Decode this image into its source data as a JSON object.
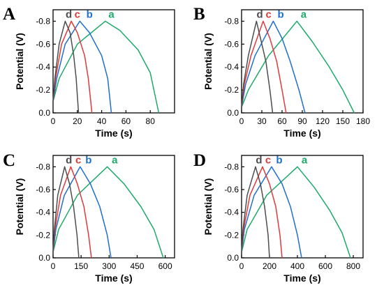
{
  "colors": {
    "a": "#1daa6a",
    "b": "#1f6fcf",
    "c": "#e2393b",
    "d": "#4d4d4d",
    "axis": "#000000"
  },
  "chart_data": [
    {
      "type": "line",
      "panel": "A",
      "xlabel": "Time (s)",
      "ylabel": "Potential (V)",
      "xlim": [
        0,
        100
      ],
      "ylim": [
        0.0,
        -0.9
      ],
      "xticks": [
        "0",
        "20",
        "40",
        "60",
        "80"
      ],
      "xtick_values": [
        0,
        20,
        40,
        60,
        80
      ],
      "yticks": [
        "-0.8",
        "-0.6",
        "-0.4",
        "-0.2",
        "0.0"
      ],
      "ytick_values": [
        -0.8,
        -0.6,
        -0.4,
        -0.2,
        0.0
      ],
      "series": [
        {
          "name": "a",
          "x": [
            0,
            5,
            20,
            43,
            55,
            70,
            80,
            87
          ],
          "y": [
            -0.1,
            -0.3,
            -0.6,
            -0.8,
            -0.72,
            -0.55,
            -0.35,
            0.0
          ]
        },
        {
          "name": "b",
          "x": [
            0,
            3,
            10,
            22,
            30,
            40,
            45,
            48
          ],
          "y": [
            -0.1,
            -0.3,
            -0.6,
            -0.8,
            -0.7,
            -0.5,
            -0.3,
            0.0
          ]
        },
        {
          "name": "c",
          "x": [
            0,
            2,
            7,
            15,
            20,
            26,
            29,
            32
          ],
          "y": [
            -0.1,
            -0.3,
            -0.6,
            -0.8,
            -0.7,
            -0.5,
            -0.3,
            0.0
          ]
        },
        {
          "name": "d",
          "x": [
            0,
            1.5,
            5,
            10,
            14,
            17,
            19,
            21
          ],
          "y": [
            -0.1,
            -0.3,
            -0.6,
            -0.8,
            -0.7,
            -0.5,
            -0.3,
            0.0
          ]
        }
      ],
      "labels": [
        {
          "text": "d",
          "series": "d",
          "x": 13,
          "y": -0.83
        },
        {
          "text": "c",
          "series": "c",
          "x": 20,
          "y": -0.83
        },
        {
          "text": "b",
          "series": "b",
          "x": 30,
          "y": -0.83
        },
        {
          "text": "a",
          "series": "a",
          "x": 48,
          "y": -0.83
        }
      ]
    },
    {
      "type": "line",
      "panel": "B",
      "xlabel": "Time (s)",
      "ylabel": "Potential (V)",
      "xlim": [
        0,
        180
      ],
      "ylim": [
        0.0,
        -0.9
      ],
      "xticks": [
        "0",
        "30",
        "60",
        "90",
        "120",
        "150",
        "180"
      ],
      "xtick_values": [
        0,
        30,
        60,
        90,
        120,
        150,
        180
      ],
      "yticks": [
        "-0.8",
        "-0.6",
        "-0.4",
        "-0.2",
        "0.0"
      ],
      "ytick_values": [
        -0.8,
        -0.6,
        -0.4,
        -0.2,
        0.0
      ],
      "series": [
        {
          "name": "a",
          "x": [
            0,
            10,
            40,
            82,
            105,
            130,
            150,
            167
          ],
          "y": [
            -0.05,
            -0.2,
            -0.5,
            -0.8,
            -0.62,
            -0.4,
            -0.2,
            0.0
          ]
        },
        {
          "name": "b",
          "x": [
            0,
            6,
            20,
            47,
            60,
            72,
            85,
            94
          ],
          "y": [
            -0.05,
            -0.25,
            -0.5,
            -0.8,
            -0.65,
            -0.45,
            -0.2,
            0.0
          ]
        },
        {
          "name": "c",
          "x": [
            0,
            4,
            14,
            32,
            42,
            52,
            60,
            66
          ],
          "y": [
            -0.05,
            -0.25,
            -0.5,
            -0.8,
            -0.65,
            -0.45,
            -0.2,
            0.0
          ]
        },
        {
          "name": "d",
          "x": [
            0,
            3,
            10,
            22,
            28,
            36,
            42,
            46
          ],
          "y": [
            -0.05,
            -0.25,
            -0.5,
            -0.8,
            -0.65,
            -0.45,
            -0.2,
            0.0
          ]
        }
      ],
      "labels": [
        {
          "text": "d",
          "series": "d",
          "x": 27,
          "y": -0.83
        },
        {
          "text": "c",
          "series": "c",
          "x": 40,
          "y": -0.83
        },
        {
          "text": "b",
          "series": "b",
          "x": 58,
          "y": -0.83
        },
        {
          "text": "a",
          "series": "a",
          "x": 92,
          "y": -0.83
        }
      ]
    },
    {
      "type": "line",
      "panel": "C",
      "xlabel": "Time (s)",
      "ylabel": "Potential (V)",
      "xlim": [
        0,
        650
      ],
      "ylim": [
        0.0,
        -0.9
      ],
      "xticks": [
        "0",
        "150",
        "300",
        "450",
        "600"
      ],
      "xtick_values": [
        0,
        150,
        300,
        450,
        600
      ],
      "yticks": [
        "-0.8",
        "-0.6",
        "-0.4",
        "-0.2",
        "0.0"
      ],
      "ytick_values": [
        -0.8,
        -0.6,
        -0.4,
        -0.2,
        0.0
      ],
      "series": [
        {
          "name": "a",
          "x": [
            0,
            30,
            130,
            290,
            380,
            470,
            540,
            590
          ],
          "y": [
            -0.05,
            -0.25,
            -0.55,
            -0.8,
            -0.65,
            -0.45,
            -0.25,
            0.0
          ]
        },
        {
          "name": "b",
          "x": [
            0,
            15,
            60,
            145,
            200,
            250,
            290,
            310
          ],
          "y": [
            -0.05,
            -0.25,
            -0.55,
            -0.8,
            -0.65,
            -0.45,
            -0.2,
            0.0
          ]
        },
        {
          "name": "c",
          "x": [
            0,
            10,
            40,
            95,
            130,
            165,
            190,
            205
          ],
          "y": [
            -0.05,
            -0.25,
            -0.55,
            -0.8,
            -0.65,
            -0.45,
            -0.2,
            0.0
          ]
        },
        {
          "name": "d",
          "x": [
            0,
            7,
            25,
            62,
            88,
            110,
            128,
            138
          ],
          "y": [
            -0.05,
            -0.25,
            -0.55,
            -0.8,
            -0.65,
            -0.45,
            -0.2,
            0.0
          ]
        }
      ],
      "labels": [
        {
          "text": "d",
          "series": "d",
          "x": 85,
          "y": -0.83
        },
        {
          "text": "c",
          "series": "c",
          "x": 135,
          "y": -0.83
        },
        {
          "text": "b",
          "series": "b",
          "x": 190,
          "y": -0.83
        },
        {
          "text": "a",
          "series": "a",
          "x": 330,
          "y": -0.83
        }
      ]
    },
    {
      "type": "line",
      "panel": "D",
      "xlabel": "Time (s)",
      "ylabel": "Potential (V)",
      "xlim": [
        0,
        870
      ],
      "ylim": [
        0.0,
        -0.9
      ],
      "xticks": [
        "0",
        "200",
        "400",
        "600",
        "800"
      ],
      "xtick_values": [
        0,
        200,
        400,
        600,
        800
      ],
      "yticks": [
        "-0.8",
        "-0.6",
        "-0.4",
        "-0.2",
        "0.0"
      ],
      "ytick_values": [
        -0.8,
        -0.6,
        -0.4,
        -0.2,
        0.0
      ],
      "series": [
        {
          "name": "a",
          "x": [
            0,
            40,
            180,
            400,
            520,
            630,
            720,
            780
          ],
          "y": [
            -0.05,
            -0.25,
            -0.55,
            -0.8,
            -0.62,
            -0.42,
            -0.22,
            0.0
          ]
        },
        {
          "name": "b",
          "x": [
            0,
            20,
            90,
            215,
            290,
            350,
            400,
            430
          ],
          "y": [
            -0.05,
            -0.25,
            -0.55,
            -0.8,
            -0.65,
            -0.45,
            -0.2,
            0.0
          ]
        },
        {
          "name": "c",
          "x": [
            0,
            14,
            60,
            150,
            200,
            245,
            275,
            290
          ],
          "y": [
            -0.05,
            -0.25,
            -0.55,
            -0.8,
            -0.65,
            -0.45,
            -0.2,
            0.0
          ]
        },
        {
          "name": "d",
          "x": [
            0,
            10,
            40,
            100,
            135,
            165,
            190,
            200
          ],
          "y": [
            -0.05,
            -0.25,
            -0.55,
            -0.8,
            -0.65,
            -0.45,
            -0.2,
            0.0
          ]
        }
      ],
      "labels": [
        {
          "text": "d",
          "series": "d",
          "x": 125,
          "y": -0.83
        },
        {
          "text": "c",
          "series": "c",
          "x": 190,
          "y": -0.83
        },
        {
          "text": "b",
          "series": "b",
          "x": 270,
          "y": -0.83
        },
        {
          "text": "a",
          "series": "a",
          "x": 450,
          "y": -0.83
        }
      ]
    }
  ]
}
